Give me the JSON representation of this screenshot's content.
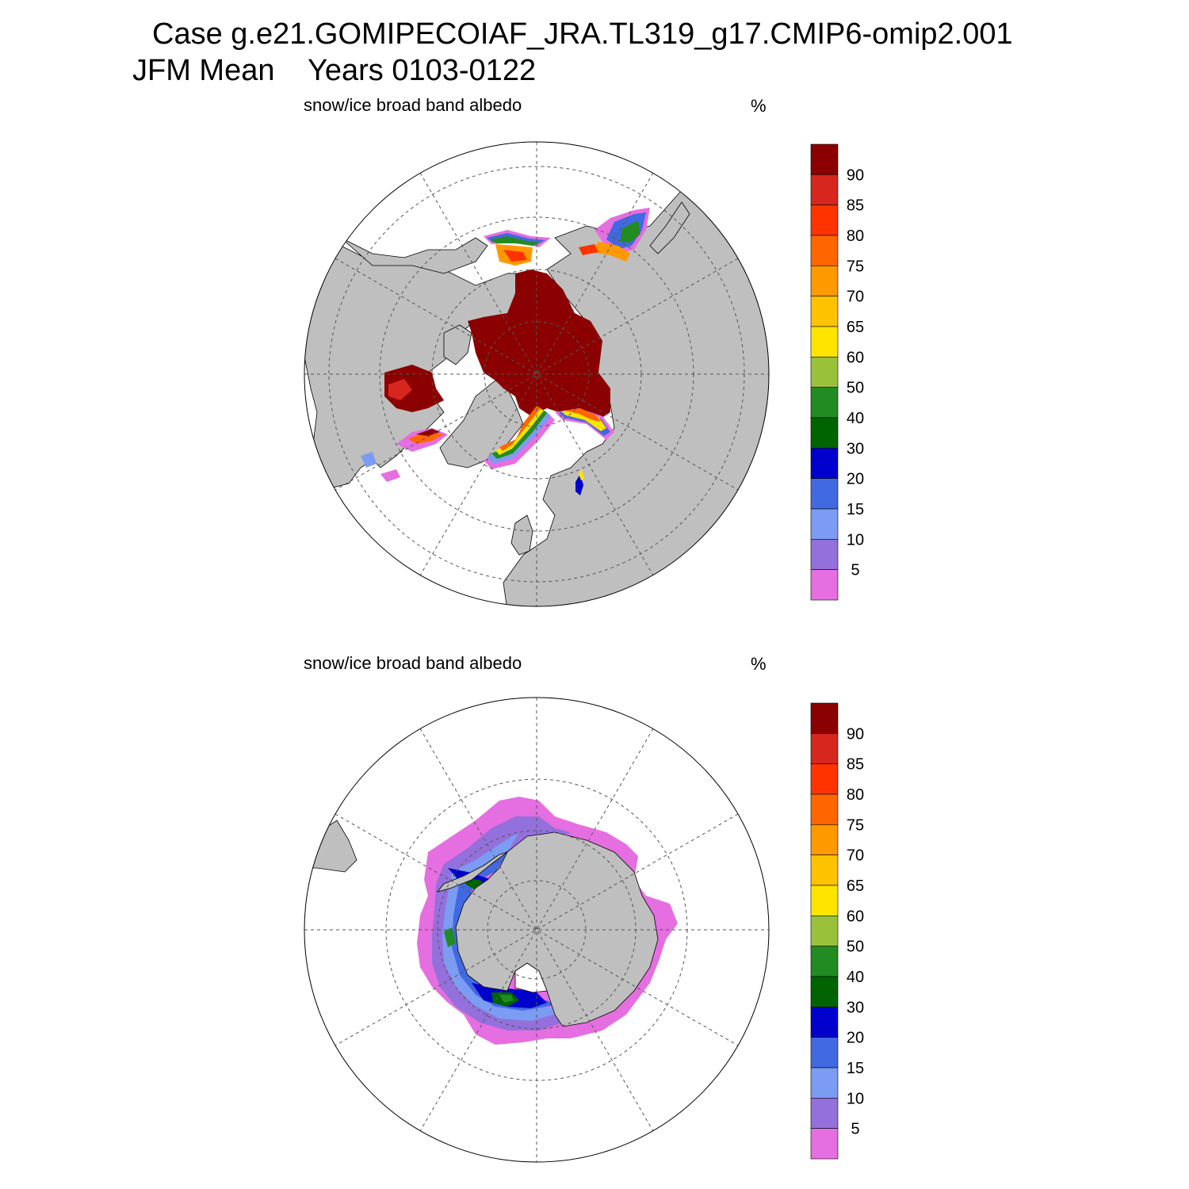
{
  "title": {
    "line1": "Case g.e21.GOMIPECOIAF_JRA.TL319_g17.CMIP6-omip2.001",
    "line2": "JFM Mean    Years 0103-0122"
  },
  "panels": [
    {
      "id": "north",
      "variable": "snow/ice broad band albedo",
      "units": "%"
    },
    {
      "id": "south",
      "variable": "snow/ice broad band albedo",
      "units": "%"
    }
  ],
  "colorbar": {
    "levels": [
      "90",
      "85",
      "80",
      "75",
      "70",
      "65",
      "60",
      "50",
      "40",
      "30",
      "20",
      "15",
      "10",
      "5"
    ],
    "colors": [
      "#8b0000",
      "#d7261e",
      "#ff3300",
      "#ff6600",
      "#ff9900",
      "#ffc200",
      "#ffe400",
      "#99c23a",
      "#228b22",
      "#006400",
      "#0000cd",
      "#4169e1",
      "#7b9cf2",
      "#9370db",
      "#e56ee0"
    ]
  },
  "map_style": {
    "land_color": "#bfbfbf",
    "ocean_color": "#ffffff",
    "projection": "polar stereographic",
    "grid": "dashed lat/lon"
  }
}
